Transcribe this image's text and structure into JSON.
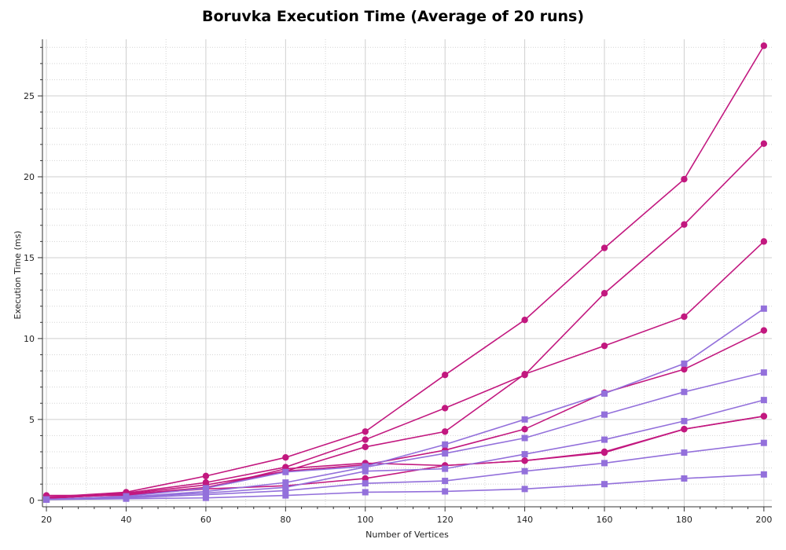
{
  "chart_data": {
    "type": "line",
    "title": "Boruvka Execution Time (Average of 20 runs)",
    "xlabel": "Number of Vertices",
    "ylabel": "Execution Time (ms)",
    "xlim": [
      19,
      202
    ],
    "ylim": [
      -0.4,
      28.5
    ],
    "grid": true,
    "legend": "none",
    "x": [
      20,
      40,
      60,
      80,
      100,
      120,
      140,
      160,
      180,
      200
    ],
    "x_ticks": [
      20,
      40,
      60,
      80,
      100,
      120,
      140,
      160,
      180,
      200
    ],
    "y_ticks": [
      0,
      5,
      10,
      15,
      20,
      25
    ],
    "series": [
      {
        "marker": "circle",
        "color": "#c2187f",
        "values": [
          0.2,
          0.5,
          1.5,
          2.65,
          4.25,
          7.75,
          11.15,
          15.6,
          19.85,
          28.1
        ]
      },
      {
        "marker": "circle",
        "color": "#c2187f",
        "values": [
          0.1,
          0.45,
          1.1,
          2.05,
          3.75,
          5.7,
          7.75,
          12.8,
          17.05,
          22.05
        ]
      },
      {
        "marker": "circle",
        "color": "#c2187f",
        "values": [
          0.1,
          0.4,
          0.95,
          1.8,
          3.3,
          4.25,
          7.8,
          9.55,
          11.35,
          16.0
        ]
      },
      {
        "marker": "circle",
        "color": "#c2187f",
        "values": [
          0.15,
          0.35,
          0.8,
          1.8,
          2.2,
          3.1,
          4.4,
          6.65,
          8.1,
          10.5
        ]
      },
      {
        "marker": "circle",
        "color": "#c2187f",
        "values": [
          0.3,
          0.3,
          0.75,
          1.95,
          2.3,
          2.15,
          2.45,
          2.95,
          4.4,
          5.2
        ]
      },
      {
        "marker": "circle",
        "color": "#c2187f",
        "values": [
          0.15,
          0.35,
          0.7,
          0.9,
          1.35,
          2.15,
          2.45,
          3.0,
          4.4,
          5.2
        ]
      },
      {
        "marker": "square",
        "color": "#9370db",
        "values": [
          0.05,
          0.25,
          0.75,
          1.75,
          2.1,
          3.45,
          5.0,
          6.6,
          8.45,
          11.85
        ]
      },
      {
        "marker": "square",
        "color": "#9370db",
        "values": [
          0.05,
          0.2,
          0.55,
          1.1,
          2.05,
          2.9,
          3.85,
          5.3,
          6.7,
          7.9
        ]
      },
      {
        "marker": "square",
        "color": "#9370db",
        "values": [
          0.05,
          0.2,
          0.45,
          0.8,
          1.8,
          1.95,
          2.85,
          3.75,
          4.9,
          6.2
        ]
      },
      {
        "marker": "square",
        "color": "#9370db",
        "values": [
          0.05,
          0.15,
          0.35,
          0.6,
          1.05,
          1.2,
          1.8,
          2.3,
          2.95,
          3.55
        ]
      },
      {
        "marker": "square",
        "color": "#9370db",
        "values": [
          0.05,
          0.1,
          0.15,
          0.3,
          0.5,
          0.55,
          0.7,
          1.0,
          1.35,
          1.6
        ]
      }
    ]
  }
}
